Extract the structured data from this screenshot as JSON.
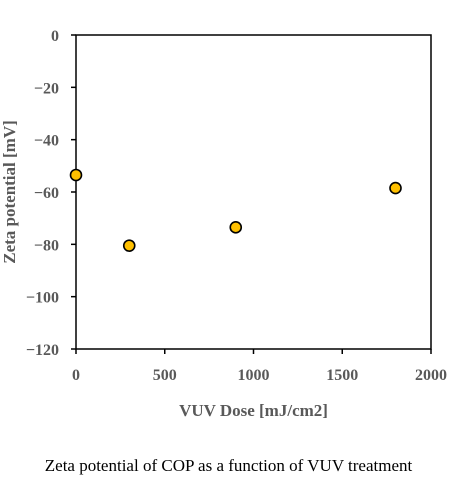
{
  "caption": "Zeta potential of COP as a function of VUV treatment",
  "chart_data": {
    "type": "scatter",
    "title": "",
    "xlabel": "VUV Dose [mJ/cm2]",
    "ylabel": "Zeta potential [mV]",
    "xlim": [
      0,
      2000
    ],
    "ylim": [
      -120,
      0
    ],
    "x_ticks": [
      0,
      500,
      1000,
      1500,
      2000
    ],
    "y_ticks": [
      0,
      -20,
      -40,
      -60,
      -80,
      -100,
      -120
    ],
    "grid": false,
    "legend": "none",
    "series": [
      {
        "x": [
          0,
          300,
          900,
          1800
        ],
        "y": [
          -53.5,
          -80.5,
          -73.5,
          -58.5
        ]
      }
    ],
    "colors": {
      "marker_fill": "#FFC000",
      "marker_stroke": "#000000",
      "axis": "#000000",
      "label": "#595959"
    }
  }
}
